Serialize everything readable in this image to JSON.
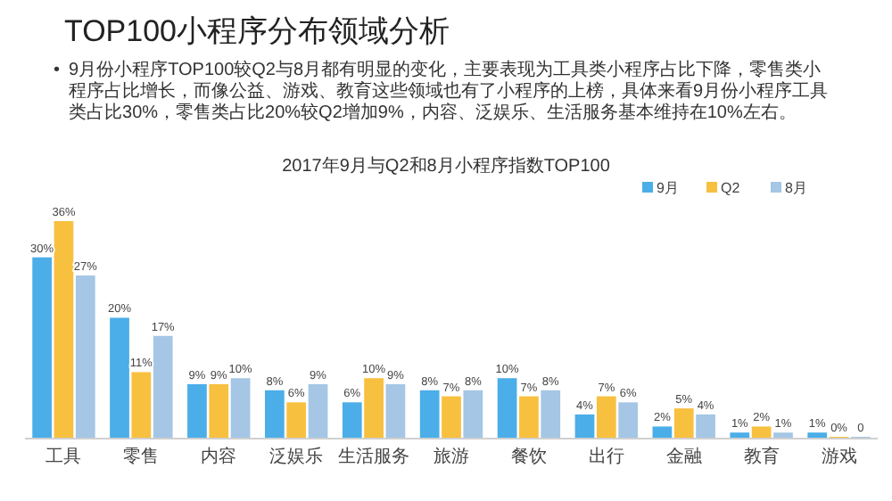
{
  "chart_data": {
    "type": "bar",
    "title": "TOP100小程序分布领域分析",
    "subtitle": "2017年9月与Q2和8月小程序指数TOP100",
    "annotations": [
      "•",
      "9月份小程序TOP100较Q2与8月都有明显的变化，主要表现为工具类小程序占比下降，零售类小程序占比增长，而像公益、游戏、教育这些领域也有了小程序的上榜，具体来看9月份小程序工具类占比30%，零售类占比20%较Q2增加9%，内容、泛娱乐、生活服务基本维持在10%左右。"
    ],
    "categories": [
      "工具",
      "零售",
      "内容",
      "泛娱乐",
      "生活服务",
      "旅游",
      "餐饮",
      "出行",
      "金融",
      "教育",
      "游戏"
    ],
    "series": [
      {
        "name": "9月",
        "color": "#4baee8",
        "values": [
          30,
          20,
          9,
          8,
          6,
          8,
          10,
          4,
          2,
          1,
          1
        ],
        "value_labels": [
          "30%",
          "20%",
          "9%",
          "8%",
          "6%",
          "8%",
          "10%",
          "4%",
          "2%",
          "1%",
          "1%"
        ]
      },
      {
        "name": "Q2",
        "color": "#f8c03f",
        "values": [
          36,
          11,
          9,
          6,
          10,
          7,
          7,
          7,
          5,
          2,
          0
        ],
        "value_labels": [
          "36%",
          "11%",
          "9%",
          "6%",
          "10%",
          "7%",
          "7%",
          "7%",
          "5%",
          "2%",
          "0%"
        ]
      },
      {
        "name": "8月",
        "color": "#a5c6e5",
        "values": [
          27,
          17,
          10,
          9,
          9,
          8,
          8,
          6,
          4,
          1,
          0
        ],
        "value_labels": [
          "27%",
          "17%",
          "10%",
          "9%",
          "9%",
          "8%",
          "8%",
          "6%",
          "4%",
          "1%",
          "0"
        ]
      }
    ],
    "legend": "top right"
  }
}
